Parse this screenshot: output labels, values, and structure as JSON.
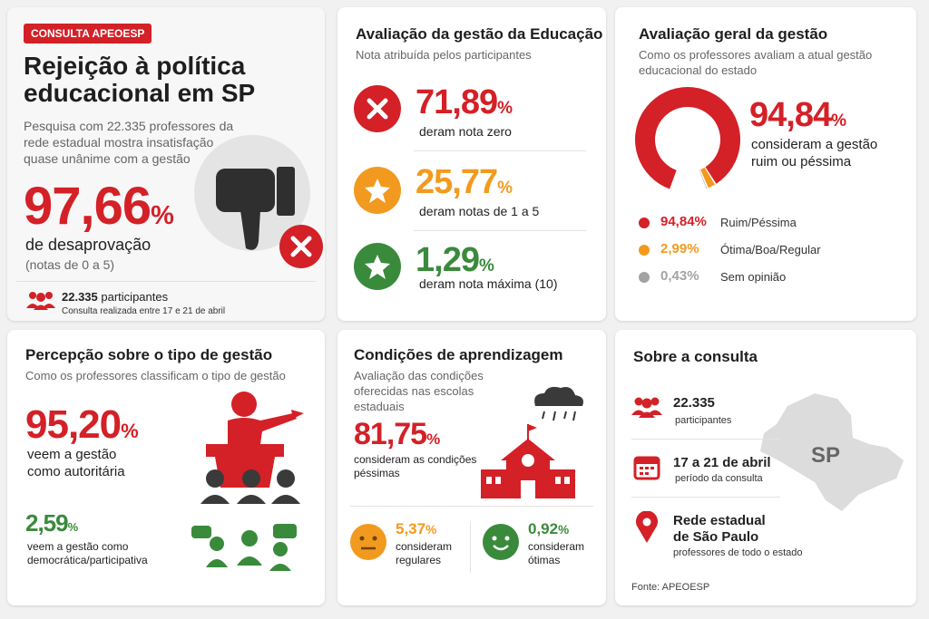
{
  "intro": {
    "badge": "CONSULTA APEOESP",
    "title_lines": [
      "Rejeição à política",
      "educacional em SP"
    ],
    "subtitle": "Pesquisa com 22.335 professores da rede estadual mostra insatisfação quase unânime com a gestão",
    "stat": {
      "value": "97,66",
      "unit": "%",
      "label": "de desaprovação",
      "note": "(notas de 0 a 5)"
    },
    "footer": {
      "count": "22.335",
      "count_label": "participantes",
      "date": "Consulta realizada entre 17 e 21 de abril"
    }
  },
  "education": {
    "title": "Avaliação da gestão da Educação",
    "subtitle": "Nota atribuída pelos participantes",
    "items": [
      {
        "value": "71,89",
        "unit": "%",
        "label": "deram nota zero"
      },
      {
        "value": "25,77",
        "unit": "%",
        "label": "deram notas de 1 a 5"
      },
      {
        "value": "1,29",
        "unit": "%",
        "label": "deram nota máxima (10)"
      }
    ]
  },
  "overall": {
    "title": "Avaliação geral da gestão",
    "subtitle": "Como os professores avaliam a atual gestão educacional do estado",
    "stat": {
      "value": "94,84",
      "unit": "%",
      "label": "consideram a gestão ruim ou péssima"
    },
    "donut": {
      "values": [
        94.84,
        2.99,
        0.43
      ],
      "value_labels": [
        "94,84%",
        "2,99%",
        "0,43%"
      ],
      "labels": [
        "Ruim/Péssima",
        "Ótima/Boa/Regular",
        "Sem opinião"
      ],
      "colors": [
        "#d42027",
        "#f29a1f",
        "#a3a3a3"
      ]
    }
  },
  "perception": {
    "title": "Percepção sobre o tipo de gestão",
    "subtitle": "Como os professores classificam o tipo de gestão",
    "stats": [
      {
        "value": "95,20",
        "unit": "%",
        "label": "veem a gestão como autoritária"
      },
      {
        "value": "2,59",
        "unit": "%",
        "label": "veem a gestão como democrática/participativa"
      }
    ]
  },
  "conditions": {
    "title": "Condições de aprendizagem",
    "subtitle": "Avaliação das condições oferecidas nas escolas estaduais",
    "main": {
      "value": "81,75",
      "unit": "%",
      "label": "consideram as condições péssimas"
    },
    "others": [
      {
        "value": "5,37",
        "unit": "%",
        "label": "consideram regulares"
      },
      {
        "value": "0,92",
        "unit": "%",
        "label": "consideram ótimas"
      }
    ]
  },
  "about": {
    "title": "Sobre a consulta",
    "items": [
      {
        "main": "22.335",
        "sub": "participantes"
      },
      {
        "main": "17 a 21 de abril",
        "sub": "período da consulta"
      },
      {
        "main": "Rede estadual de São Paulo",
        "sub": "professores de todo o estado"
      }
    ],
    "map_label": "SP",
    "source": "Fonte: APEOESP"
  }
}
